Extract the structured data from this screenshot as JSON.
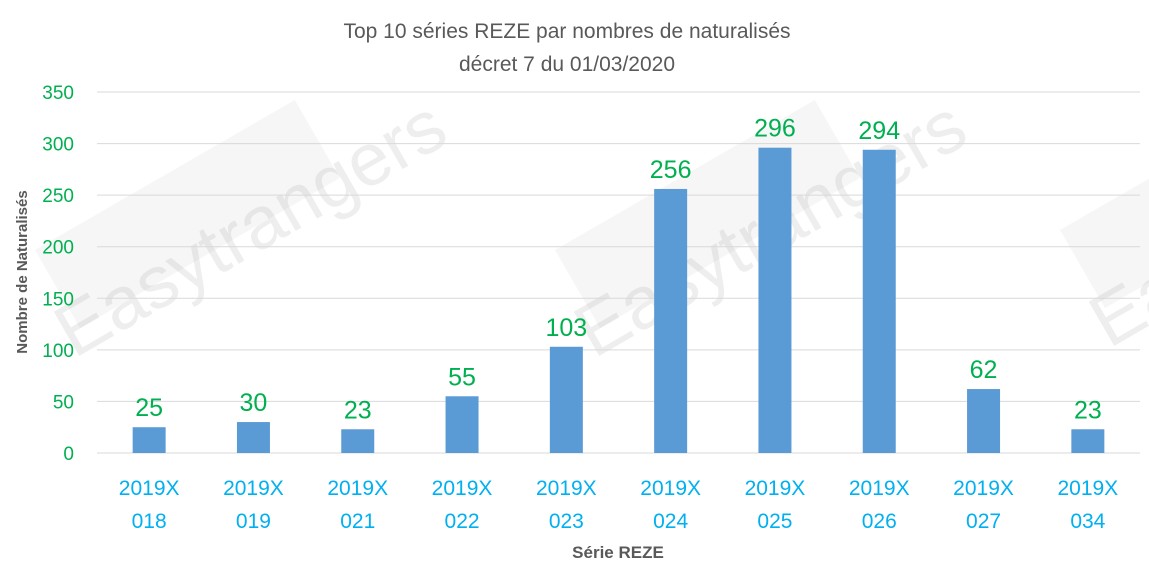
{
  "chart_data": {
    "type": "bar",
    "title": "Top 10 séries REZE par nombres de naturalisés",
    "subtitle": "décret 7 du 01/03/2020",
    "xlabel": "Série REZE",
    "ylabel": "Nombre de Naturalisés",
    "categories": [
      [
        "2019X",
        "018"
      ],
      [
        "2019X",
        "019"
      ],
      [
        "2019X",
        "021"
      ],
      [
        "2019X",
        "022"
      ],
      [
        "2019X",
        "023"
      ],
      [
        "2019X",
        "024"
      ],
      [
        "2019X",
        "025"
      ],
      [
        "2019X",
        "026"
      ],
      [
        "2019X",
        "027"
      ],
      [
        "2019X",
        "034"
      ]
    ],
    "values": [
      25,
      30,
      23,
      55,
      103,
      256,
      296,
      294,
      62,
      23
    ],
    "ylim": [
      0,
      350
    ],
    "yticks": [
      0,
      50,
      100,
      150,
      200,
      250,
      300,
      350
    ],
    "grid": true,
    "legend": "none",
    "colors": {
      "bar": "#5b9bd5",
      "data_label": "#00b050",
      "tick_label": "#00b050",
      "category_label": "#00b0f0",
      "title": "#595959",
      "grid": "#d9d9d9"
    }
  },
  "watermark": "Easytrangers"
}
